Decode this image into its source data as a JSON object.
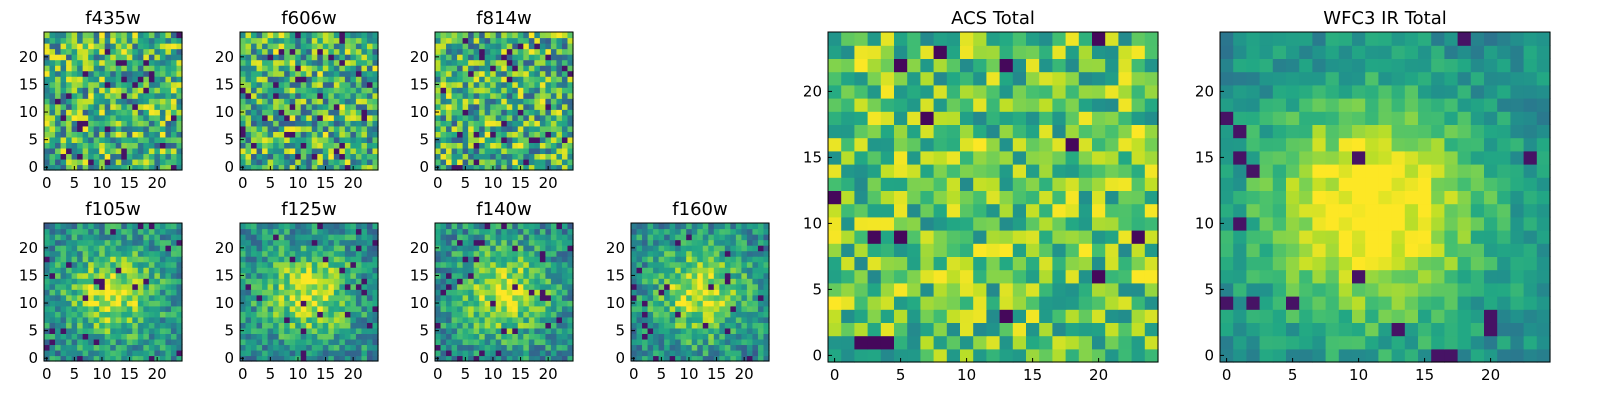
{
  "chart_data": [
    {
      "type": "heatmap",
      "title": "f435w",
      "xticks": [
        0,
        5,
        10,
        15,
        20
      ],
      "yticks": [
        0,
        5,
        10,
        15,
        20
      ],
      "xlim": [
        0,
        25
      ],
      "ylim": [
        0,
        25
      ],
      "grid": "25x25",
      "colormap": "viridis",
      "pattern": "noise",
      "seed": 11
    },
    {
      "type": "heatmap",
      "title": "f606w",
      "xticks": [
        0,
        5,
        10,
        15,
        20
      ],
      "yticks": [
        0,
        5,
        10,
        15,
        20
      ],
      "xlim": [
        0,
        25
      ],
      "ylim": [
        0,
        25
      ],
      "grid": "25x25",
      "colormap": "viridis",
      "pattern": "noise",
      "seed": 23
    },
    {
      "type": "heatmap",
      "title": "f814w",
      "xticks": [
        0,
        5,
        10,
        15,
        20
      ],
      "yticks": [
        0,
        5,
        10,
        15,
        20
      ],
      "xlim": [
        0,
        25
      ],
      "ylim": [
        0,
        25
      ],
      "grid": "25x25",
      "colormap": "viridis",
      "pattern": "noise",
      "seed": 37
    },
    {
      "type": "heatmap",
      "title": "f105w",
      "xticks": [
        0,
        5,
        10,
        15,
        20
      ],
      "yticks": [
        0,
        5,
        10,
        15,
        20
      ],
      "xlim": [
        0,
        25
      ],
      "ylim": [
        0,
        25
      ],
      "grid": "25x25",
      "colormap": "viridis",
      "pattern": "blob",
      "seed": 41
    },
    {
      "type": "heatmap",
      "title": "f125w",
      "xticks": [
        0,
        5,
        10,
        15,
        20
      ],
      "yticks": [
        0,
        5,
        10,
        15,
        20
      ],
      "xlim": [
        0,
        25
      ],
      "ylim": [
        0,
        25
      ],
      "grid": "25x25",
      "colormap": "viridis",
      "pattern": "blob",
      "seed": 53
    },
    {
      "type": "heatmap",
      "title": "f140w",
      "xticks": [
        0,
        5,
        10,
        15,
        20
      ],
      "yticks": [
        0,
        5,
        10,
        15,
        20
      ],
      "xlim": [
        0,
        25
      ],
      "ylim": [
        0,
        25
      ],
      "grid": "25x25",
      "colormap": "viridis",
      "pattern": "blob",
      "seed": 67
    },
    {
      "type": "heatmap",
      "title": "f160w",
      "xticks": [
        0,
        5,
        10,
        15,
        20
      ],
      "yticks": [
        0,
        5,
        10,
        15,
        20
      ],
      "xlim": [
        0,
        25
      ],
      "ylim": [
        0,
        25
      ],
      "grid": "25x25",
      "colormap": "viridis",
      "pattern": "blob",
      "seed": 79
    },
    {
      "type": "heatmap",
      "title": "ACS Total",
      "xticks": [
        0,
        5,
        10,
        15,
        20
      ],
      "yticks": [
        0,
        5,
        10,
        15,
        20
      ],
      "xlim": [
        0,
        25
      ],
      "ylim": [
        0,
        25
      ],
      "grid": "25x25",
      "colormap": "viridis",
      "pattern": "noise-soft",
      "seed": 97
    },
    {
      "type": "heatmap",
      "title": "WFC3 IR Total",
      "xticks": [
        0,
        5,
        10,
        15,
        20
      ],
      "yticks": [
        0,
        5,
        10,
        15,
        20
      ],
      "xlim": [
        0,
        25
      ],
      "ylim": [
        0,
        25
      ],
      "grid": "25x25",
      "colormap": "viridis",
      "pattern": "blob-strong",
      "seed": 113
    }
  ]
}
